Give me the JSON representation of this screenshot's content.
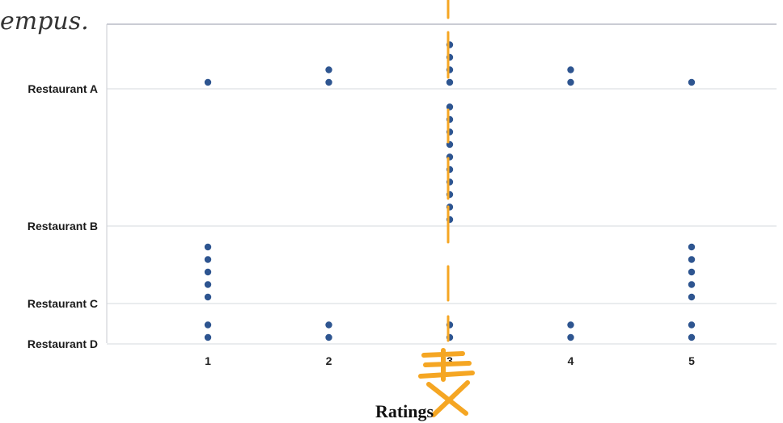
{
  "chart_data": {
    "type": "scatter",
    "subtype": "dot plot",
    "xlabel": "Ratings",
    "x_ticks": [
      "1",
      "2",
      "3",
      "4",
      "5"
    ],
    "xlim": [
      0.2,
      5.7
    ],
    "categories": [
      "Restaurant A",
      "Restaurant B",
      "Restaurant C",
      "Restaurant D"
    ],
    "dot_color": "#2e5590",
    "grid": "horizontal",
    "dot_counts": {
      "Restaurant A": {
        "1": 1,
        "2": 2,
        "3": 4,
        "4": 2,
        "5": 1
      },
      "Restaurant B": {
        "1": 0,
        "2": 0,
        "3": 10,
        "4": 0,
        "5": 0
      },
      "Restaurant C": {
        "1": 5,
        "2": 0,
        "3": 0,
        "4": 0,
        "5": 5
      },
      "Restaurant D": {
        "1": 2,
        "2": 2,
        "3": 2,
        "4": 2,
        "5": 2
      }
    },
    "annotation": {
      "handwritten_line_at_x": 3,
      "handwritten_text": "empus.",
      "color": "#f5a623"
    }
  }
}
